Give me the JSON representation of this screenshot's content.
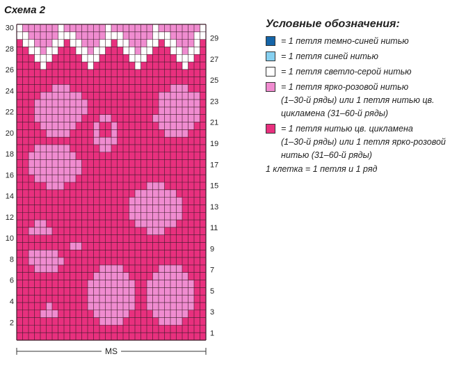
{
  "title": "Схема 2",
  "legend": {
    "title": "Условные обозначения:",
    "items": [
      {
        "name": "dark-blue",
        "color": "#1565a8",
        "text": "= 1 петля темно-синей нитью",
        "extra": ""
      },
      {
        "name": "blue",
        "color": "#86d0f0",
        "text": "= 1 петля синей нитью",
        "extra": ""
      },
      {
        "name": "light-gray",
        "color": "#ffffff",
        "text": "= 1 петля светло-серой нитью",
        "extra": ""
      },
      {
        "name": "bright-pink",
        "color": "#f08cd0",
        "text": "= 1 петля ярко-розовой нитью",
        "extra": "(1–30-й ряды) или 1 петля нитью цв. цикламена (31–60-й ряды)"
      },
      {
        "name": "cyclamen",
        "color": "#e8307e",
        "text": "= 1 петля нитью цв. цикламена",
        "extra": "(1–30-й ряды) или 1 петля ярко-розовой нитью (31–60-й ряды)"
      }
    ],
    "cell_note": "1 клетка = 1 петля и 1 ряд"
  },
  "chart": {
    "ms_label": "MS",
    "left_row_numbers": [
      "2",
      "4",
      "6",
      "8",
      "10",
      "12",
      "14",
      "16",
      "18",
      "20",
      "22",
      "24",
      "26",
      "28",
      "30"
    ],
    "right_row_numbers": [
      "1",
      "3",
      "5",
      "7",
      "9",
      "11",
      "13",
      "15",
      "17",
      "19",
      "21",
      "23",
      "25",
      "27",
      "29"
    ],
    "colors": {
      "W": "#ffffff",
      "L": "#f08cd0",
      "D": "#e8307e"
    },
    "rows_top_to_bottom": [
      "WLLLLLLWLLLLLLLWLLLLLLLWLLLLLLLW",
      "WWLLLLLWWWLLLLLWWWLLLLLWWWLLLLWW",
      "DWWLLLWWDWWLLLWWDWWLLLWWDWWLLLWD",
      "DDWWLWWDDDWWLWWDDDWWLWWDDDWWLWWD",
      "DDDWWWDDDDDWWWDDDDDWWWDDDDDWWWDD",
      "DDDDWDDDDDDDWDDDDDDDWDDDDDDDWDDD",
      "DDDDDDDDDDDDDDDDDDDDDDDDDDDDDDDD",
      "DDDDDDDDDDDDDDDDDDDDDDDDDDDDDDDD",
      "DDDDDDLLLDDDDDDDDDDDDDDDDDLLLDDD",
      "DDDDLLLLLLLDDDDDDDDDDDDDLLLLLLLD",
      "DDDLLLLLLLLLDDDDDDDDDDDDLLLLLLLD",
      "DDDLLLLLLLLLDDDDDDDDDDDDLLLLLLLD",
      "DDDLLLLLLLLDDDLLDDDDDDDLLLLLLLLD",
      "DDDDLLLLLLDDDLDDLDDDDDDDLLLLLLDD",
      "DDDDDLLLLDDDDLDDLDDDDDDDDLLLLDDD",
      "DDDDDDDDDDDDDLLLLDDDDDDDDDDDDDDD",
      "DDDLLLLLLDDDDDLLDDDDDDDDDDDDDDDD",
      "DDLLLLLLLLDDDDDDDDDDDDDDDDDDDDDD",
      "DDLLLLLLLLLDDDDDDDDDDDDDDDDDDDDD",
      "DDLLLLLLLLLDDDDDDDDDDDDDDDDDDDDD",
      "DDDLLLLLLLDDDDDDDDDDDDDDDDDDDDDD",
      "DDDDDLLLDDDDDDDDDDDDDDLLLDDDDDDD",
      "DDDDDDDDDDDDDDDDDDDDLLLLLLLDDDDD",
      "DDDDDDDDDDDDDDDDDDDLLLLLLLLLDDDD",
      "DDDDDDDDDDDDDDDDDDDLLLLLLLLLDDDD",
      "DDDDDDDDDDDDDDDDDDDLLLLLLLLLDDDD",
      "DDDLLDDDDDDDDDDDDDDDLLLLLLLDDDDD",
      "DDLLLLDDDDDDDDDDDDDDDDLLLDDDDDDD",
      "DDDDDDDDDDDDDDDDDDDDDDDDDDDDDDDD",
      "DDDDDDDDDLLDDDDDDDDDDDDDDDDDDDDD",
      "DDLLLLLDDDDDDDDDDDDDDDDDDDDDDDDD",
      "DDLLLLLLDDDDDDDDDDDDDDDDDDDDDDDD",
      "DDDLLLLDDDDDDDLLLLDDDDDDLLLLDDDD",
      "DDDDDDDDDDDDDLLLLLLDDDDLLLLLLDDD",
      "DDDDDDDDDDDDLLLLLLLLDDLLLLLLLLDD",
      "DDDDDDDDDDDDLLLLLLLLDDLLLLLLLLDD",
      "DDDDDDDDDDDDLLLLLLLLDDLLLLLLLLDD",
      "DDDDDLDDDDDDLLLLLLLLDDLLLLLLLLDD",
      "DDDDLLLDDDDDDLLLLLLDDDDLLLLLLDDD",
      "DDDDDDDDDDDDDDLLLLDDDDDDLLLLDDDD",
      "DDDDDDDDDDDDDDDDDDDDDDDDDDDDDDDD",
      "DDDDDDDDDDDDDDDDDDDDDDDDDDDDDDDD"
    ]
  }
}
